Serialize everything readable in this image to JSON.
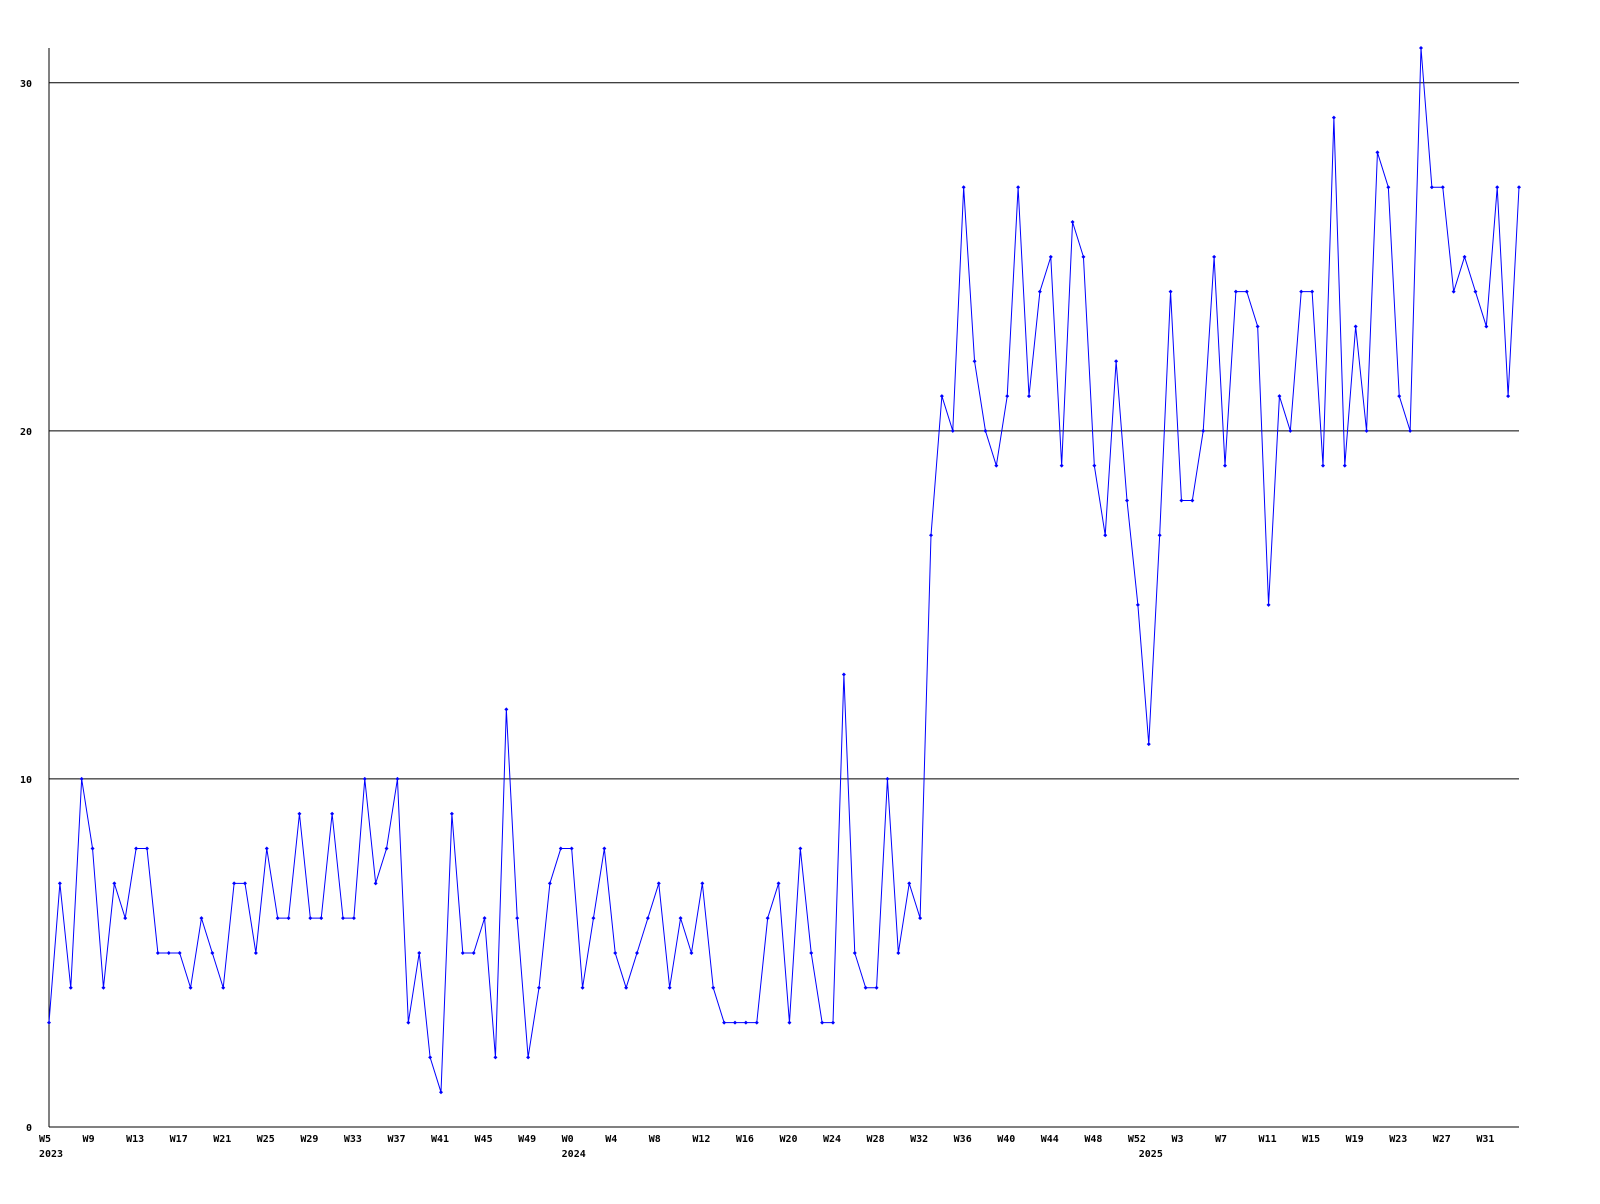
{
  "chart_data": {
    "type": "line",
    "categories": [
      "W5",
      null,
      null,
      null,
      "W9",
      null,
      null,
      null,
      "W13",
      null,
      null,
      null,
      "W17",
      null,
      null,
      null,
      "W21",
      null,
      null,
      null,
      "W25",
      null,
      null,
      null,
      "W29",
      null,
      null,
      null,
      "W33",
      null,
      null,
      null,
      "W37",
      null,
      null,
      null,
      "W41",
      null,
      null,
      null,
      "W45",
      null,
      null,
      null,
      "W49",
      null,
      null,
      null,
      "W0",
      null,
      null,
      null,
      "W4",
      null,
      null,
      null,
      "W8",
      null,
      null,
      null,
      "W12",
      null,
      null,
      null,
      "W16",
      null,
      null,
      null,
      "W20",
      null,
      null,
      null,
      "W24",
      null,
      null,
      null,
      "W28",
      null,
      null,
      null,
      "W32",
      null,
      null,
      null,
      "W36",
      null,
      null,
      null,
      "W40",
      null,
      null,
      null,
      "W44",
      null,
      null,
      null,
      "W48",
      null,
      null,
      null,
      "W52",
      null,
      null,
      null,
      "W3",
      null,
      null,
      null,
      "W7",
      null,
      null,
      null,
      "W11",
      null,
      null,
      null,
      "W15",
      null,
      null,
      null,
      "W19",
      null,
      null,
      null,
      "W23",
      null,
      null,
      null,
      "W27",
      null,
      null,
      null,
      "W31",
      null,
      null,
      null
    ],
    "year_labels": [
      {
        "index": 0,
        "label": "2023"
      },
      {
        "index": 48,
        "label": "2024"
      },
      {
        "index": 101,
        "label": "2025"
      }
    ],
    "series": [
      {
        "color": "#0000ff",
        "values": [
          3,
          7,
          4,
          10,
          8,
          4,
          7,
          6,
          8,
          8,
          5,
          5,
          5,
          4,
          6,
          5,
          4,
          7,
          7,
          5,
          8,
          6,
          6,
          9,
          6,
          6,
          9,
          6,
          6,
          10,
          7,
          8,
          10,
          3,
          5,
          2,
          1,
          9,
          5,
          5,
          6,
          2,
          12,
          6,
          2,
          4,
          7,
          8,
          8,
          4,
          6,
          8,
          5,
          4,
          5,
          6,
          7,
          4,
          6,
          5,
          7,
          4,
          3,
          3,
          3,
          3,
          6,
          7,
          3,
          8,
          5,
          3,
          3,
          13,
          5,
          4,
          4,
          10,
          5,
          7,
          6,
          17,
          21,
          20,
          27,
          22,
          20,
          19,
          21,
          27,
          21,
          24,
          25,
          19,
          26,
          25,
          19,
          17,
          22,
          18,
          15,
          11,
          17,
          24,
          18,
          18,
          20,
          25,
          19,
          24,
          24,
          23,
          15,
          21,
          20,
          24,
          24,
          19,
          29,
          19,
          23,
          20,
          28,
          27,
          21,
          20,
          31,
          27,
          27,
          24,
          25,
          24,
          23,
          27,
          21,
          27
        ]
      }
    ],
    "ylim": [
      0,
      31
    ],
    "yticks": [
      0,
      10,
      20,
      30
    ],
    "grid": true
  }
}
